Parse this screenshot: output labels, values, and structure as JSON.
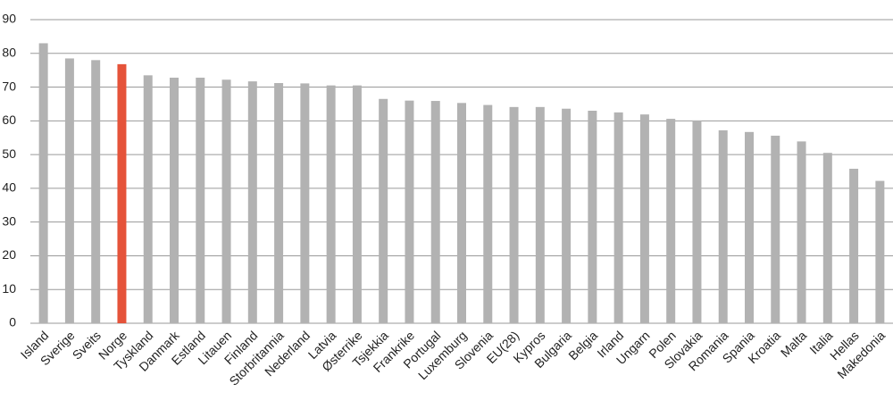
{
  "chart_data": {
    "type": "bar",
    "categories": [
      "Island",
      "Sverige",
      "Sveits",
      "Norge",
      "Tyskland",
      "Danmark",
      "Estland",
      "Litauen",
      "Finland",
      "Storbritannia",
      "Nederland",
      "Latvia",
      "Østerrike",
      "Tsjekkia",
      "Frankrike",
      "Portugal",
      "Luxemburg",
      "Slovenia",
      "EU(28)",
      "Kypros",
      "Bulgaria",
      "Belgia",
      "Irland",
      "Ungarn",
      "Polen",
      "Slovakia",
      "Romania",
      "Spania",
      "Kroatia",
      "Malta",
      "Italia",
      "Hellas",
      "Makedonia"
    ],
    "values": [
      83,
      78.5,
      78,
      76.8,
      73.5,
      72.8,
      72.8,
      72.2,
      71.7,
      71.2,
      71.1,
      70.5,
      70.5,
      66.5,
      66,
      65.9,
      65.3,
      64.7,
      64.1,
      64.1,
      63.6,
      63,
      62.5,
      61.9,
      60.6,
      60.1,
      57.2,
      56.7,
      55.6,
      53.9,
      50.5,
      45.8,
      42.2
    ],
    "colors": [
      "#b2b2b2",
      "#b2b2b2",
      "#b2b2b2",
      "#e5533a",
      "#b2b2b2",
      "#b2b2b2",
      "#b2b2b2",
      "#b2b2b2",
      "#b2b2b2",
      "#b2b2b2",
      "#b2b2b2",
      "#b2b2b2",
      "#b2b2b2",
      "#b2b2b2",
      "#b2b2b2",
      "#b2b2b2",
      "#b2b2b2",
      "#b2b2b2",
      "#b2b2b2",
      "#b2b2b2",
      "#b2b2b2",
      "#b2b2b2",
      "#b2b2b2",
      "#b2b2b2",
      "#b2b2b2",
      "#b2b2b2",
      "#b2b2b2",
      "#b2b2b2",
      "#b2b2b2",
      "#b2b2b2",
      "#b2b2b2",
      "#b2b2b2",
      "#b2b2b2"
    ],
    "ylim": [
      0,
      90
    ],
    "yticks": [
      0,
      10,
      20,
      30,
      40,
      50,
      60,
      70,
      80,
      90
    ],
    "grid": true
  }
}
